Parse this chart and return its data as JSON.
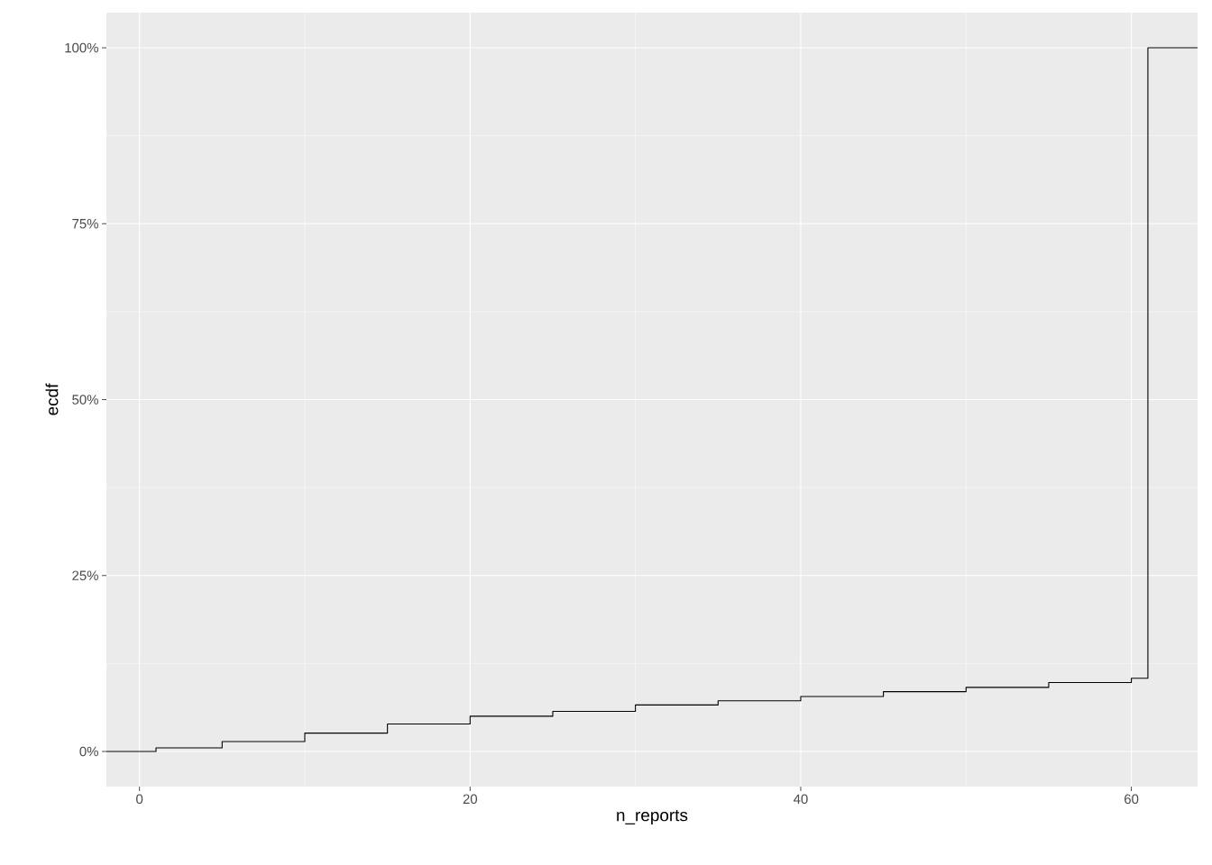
{
  "chart_data": {
    "type": "step",
    "xlabel": "n_reports",
    "ylabel": "ecdf",
    "x": [
      -2,
      1,
      5,
      10,
      15,
      20,
      25,
      30,
      35,
      40,
      45,
      50,
      55,
      60,
      61,
      64
    ],
    "values": [
      0,
      0.5,
      1.4,
      2.6,
      3.9,
      5.0,
      5.7,
      6.6,
      7.2,
      7.8,
      8.5,
      9.1,
      9.8,
      10.4,
      100,
      100
    ],
    "color": "#000000",
    "xlim": [
      -2,
      64
    ],
    "xticks": [
      0,
      20,
      40,
      60
    ],
    "ylim": [
      -5,
      105
    ],
    "yticks": [
      {
        "value": 0,
        "label": "0%"
      },
      {
        "value": 25,
        "label": "25%"
      },
      {
        "value": 50,
        "label": "50%"
      },
      {
        "value": 75,
        "label": "75%"
      },
      {
        "value": 100,
        "label": "100%"
      }
    ],
    "grid": true
  }
}
